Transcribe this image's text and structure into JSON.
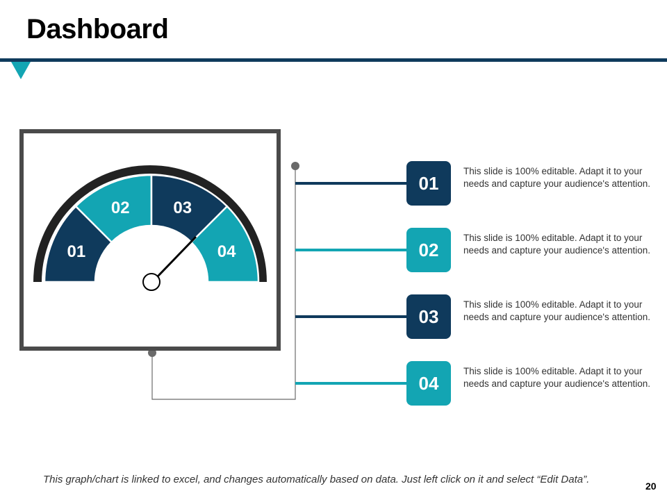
{
  "slide": {
    "title": "Dashboard",
    "footnote": "This graph/chart is linked to excel, and changes automatically based on data. Just left click on it and select “Edit Data”.",
    "page_number": "20"
  },
  "colors": {
    "dark": "#0f3a5c",
    "teal": "#13a5b3",
    "frame": "#4a4a4a",
    "connector": "#6a6a6a"
  },
  "gauge": {
    "segments": [
      {
        "label": "01",
        "color": "dark"
      },
      {
        "label": "02",
        "color": "teal"
      },
      {
        "label": "03",
        "color": "dark"
      },
      {
        "label": "04",
        "color": "teal"
      }
    ]
  },
  "items": [
    {
      "label": "01",
      "color": "dark",
      "text": "This slide is 100% editable. Adapt it to your needs and capture your audience's attention."
    },
    {
      "label": "02",
      "color": "teal",
      "text": "This slide is 100% editable. Adapt it to your needs and capture your audience's attention."
    },
    {
      "label": "03",
      "color": "dark",
      "text": "This slide is 100% editable. Adapt it to your needs and capture your audience's attention."
    },
    {
      "label": "04",
      "color": "teal",
      "text": "This slide is 100% editable. Adapt it to your needs and capture your audience's attention."
    }
  ]
}
